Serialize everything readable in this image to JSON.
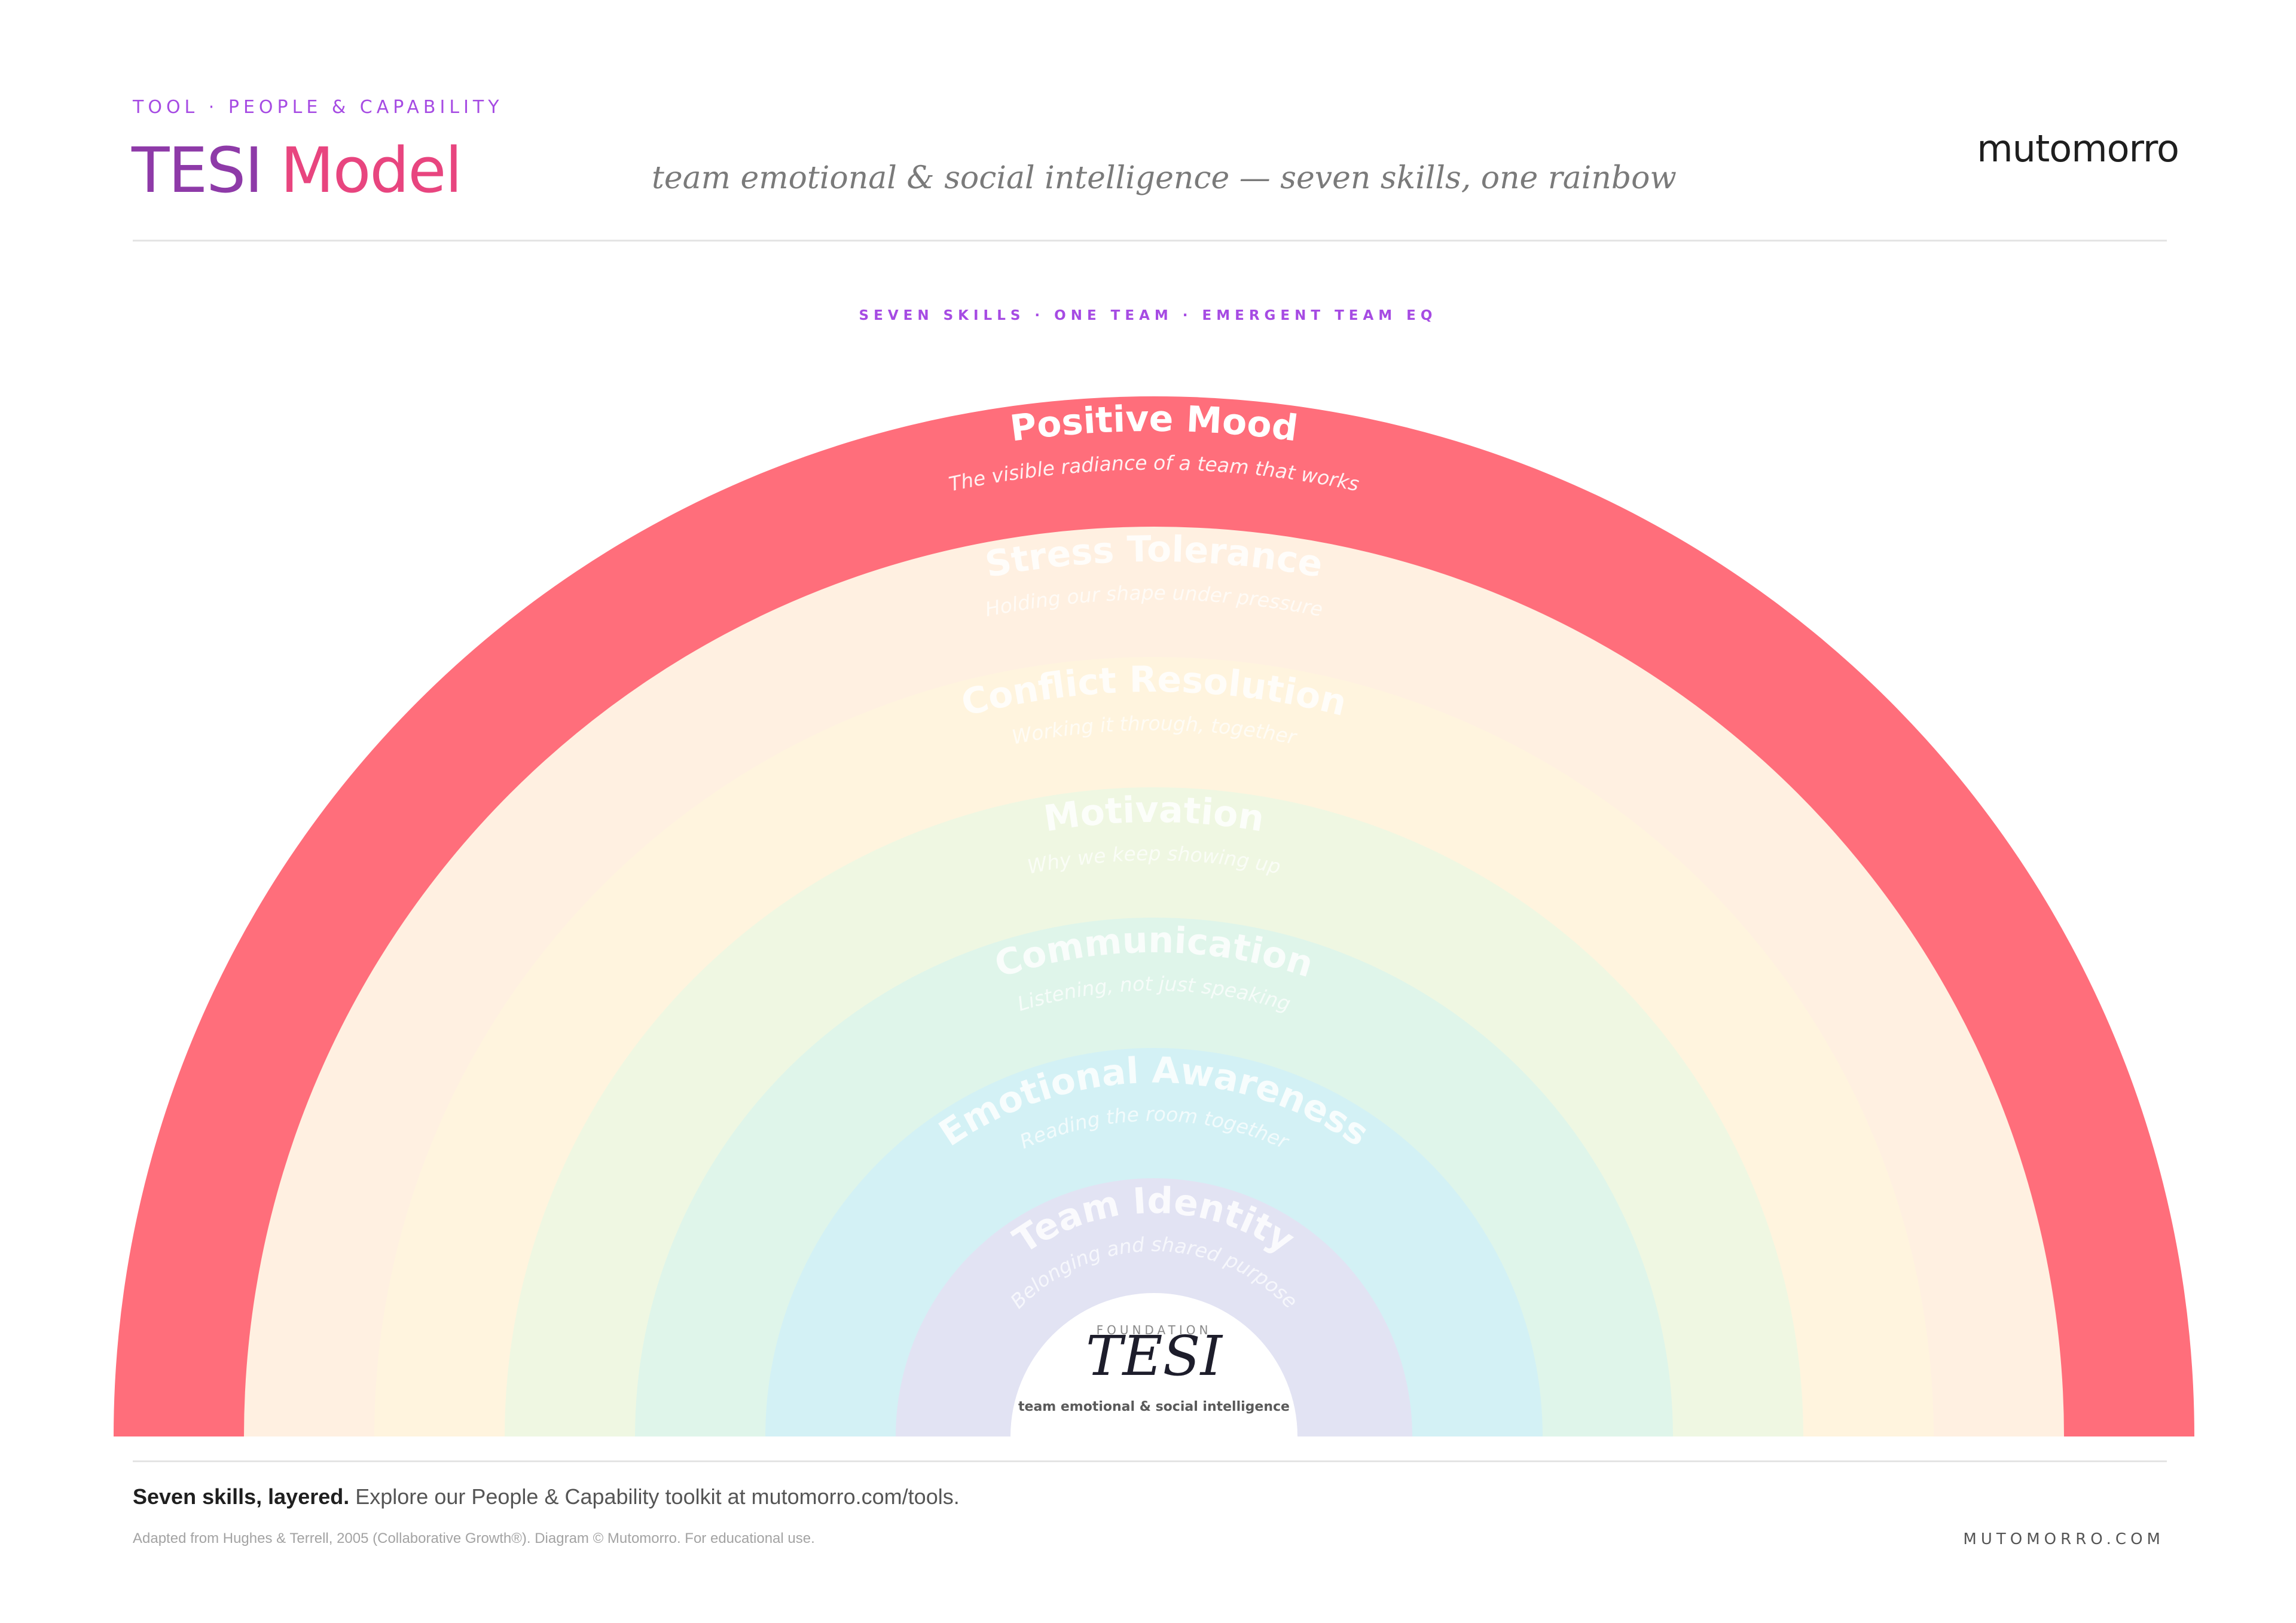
{
  "header": {
    "eyebrow": "TOOL · PEOPLE & CAPABILITY",
    "title_part1": "TESI",
    "title_part2": "Model",
    "subtitle": "team emotional & social intelligence — seven skills, one rainbow",
    "brand": "mutomorro"
  },
  "diagram": {
    "caption": "SEVEN SKILLS · ONE TEAM · EMERGENT TEAM EQ",
    "layers": [
      {
        "name": "Positive Mood",
        "tagline": "The visible radiance of a team that works",
        "color": "#ff6e7b",
        "highlighted": true
      },
      {
        "name": "Stress Tolerance",
        "tagline": "Holding our shape under pressure",
        "color": "#fff0e1",
        "highlighted": false
      },
      {
        "name": "Conflict Resolution",
        "tagline": "Working it through, together",
        "color": "#fff4de",
        "highlighted": false
      },
      {
        "name": "Motivation",
        "tagline": "Why we keep showing up",
        "color": "#eff7e2",
        "highlighted": false
      },
      {
        "name": "Communication",
        "tagline": "Listening, not just speaking",
        "color": "#dff5ea",
        "highlighted": false
      },
      {
        "name": "Emotional Awareness",
        "tagline": "Reading the room together",
        "color": "#d3f1f5",
        "highlighted": false
      },
      {
        "name": "Team Identity",
        "tagline": "Belonging and shared purpose",
        "color": "#e2e3f3",
        "highlighted": false
      }
    ],
    "foundation": {
      "eyebrow": "FOUNDATION",
      "title": "TESI",
      "subtitle": "team emotional & social intelligence"
    }
  },
  "footer": {
    "lead_bold": "Seven skills, layered.",
    "lead_rest": "Explore our People & Capability toolkit at mutomorro.com/tools.",
    "credit": "Adapted from Hughes & Terrell, 2005 (Collaborative Growth®). Diagram © Mutomorro. For educational use.",
    "site": "MUTOMORRO.COM"
  }
}
